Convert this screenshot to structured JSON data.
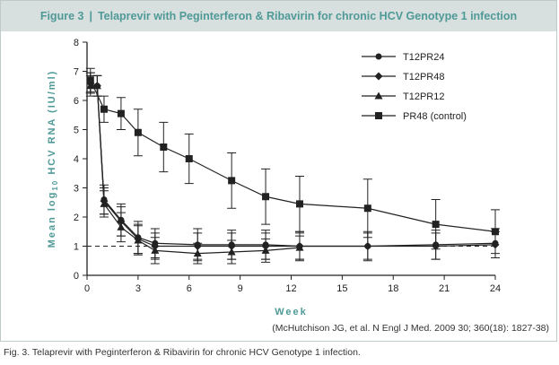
{
  "figure": {
    "label": "Figure 3",
    "separator": "|",
    "title": "Telaprevir with Peginterferon & Ribavirin for chronic HCV Genotype 1 infection",
    "citation": "(McHutchison JG, et al. N Engl J Med. 2009 30; 360(18): 1827-38)",
    "caption": "Fig. 3.  Telaprevir with Peginterferon & Ribavirin for chronic HCV Genotype 1 infection."
  },
  "chart_data": {
    "type": "line",
    "title": "Telaprevir with Peginterferon & Ribavirin for chronic HCV Genotype 1 infection",
    "xlabel": "Week",
    "ylabel": "Mean log10 HCV RNA (IU/ml)",
    "ylabel_parts": {
      "before": "Mean log",
      "sub": "10",
      "after": " HCV RNA (IU/ml)"
    },
    "xlim": [
      0,
      24
    ],
    "ylim": [
      0,
      8
    ],
    "xticks": [
      0,
      3,
      6,
      9,
      12,
      15,
      18,
      21,
      24
    ],
    "yticks": [
      0,
      1,
      2,
      3,
      4,
      5,
      6,
      7,
      8
    ],
    "reference_line": {
      "y": 1,
      "style": "dashed"
    },
    "legend_position": "top-right",
    "grid": false,
    "series": [
      {
        "name": "T12PR24",
        "marker": "circle",
        "x": [
          0.2,
          0.6,
          1,
          2,
          3,
          4,
          6.5,
          8.5,
          10.5,
          12.5,
          16.5,
          20.5,
          24
        ],
        "y": [
          6.6,
          6.5,
          2.6,
          1.9,
          1.3,
          1.1,
          1.05,
          1.05,
          1.05,
          1.0,
          1.0,
          1.05,
          1.1
        ],
        "err": [
          0.35,
          0.35,
          0.5,
          0.55,
          0.55,
          0.5,
          0.55,
          0.5,
          0.5,
          0.5,
          0.5,
          0.5,
          0.5
        ]
      },
      {
        "name": "T12PR48",
        "marker": "diamond",
        "x": [
          0.2,
          0.6,
          1,
          2,
          3,
          4,
          6.5,
          8.5,
          10.5,
          12.5,
          16.5,
          20.5,
          24
        ],
        "y": [
          6.6,
          6.5,
          2.55,
          1.85,
          1.25,
          1.0,
          1.0,
          1.0,
          1.0,
          1.0,
          1.0,
          1.0,
          1.05
        ],
        "err": [
          0.35,
          0.35,
          0.45,
          0.5,
          0.5,
          0.45,
          0.45,
          0.45,
          0.45,
          0.45,
          0.45,
          0.45,
          0.45
        ]
      },
      {
        "name": "T12PR12",
        "marker": "triangle",
        "x": [
          0.2,
          0.6,
          1,
          2,
          3,
          4,
          6.5,
          8.5,
          10.5,
          12.5
        ],
        "y": [
          6.5,
          6.5,
          2.45,
          1.65,
          1.2,
          0.85,
          0.75,
          0.8,
          0.85,
          0.95
        ],
        "err": [
          0.35,
          0.35,
          0.45,
          0.5,
          0.5,
          0.45,
          0.35,
          0.4,
          0.4,
          0.4
        ]
      },
      {
        "name": "PR48 (control)",
        "marker": "square",
        "x": [
          0.2,
          1,
          2,
          3,
          4.5,
          6,
          8.5,
          10.5,
          12.5,
          16.5,
          20.5,
          24
        ],
        "y": [
          6.7,
          5.7,
          5.55,
          4.9,
          4.4,
          4.0,
          3.25,
          2.7,
          2.45,
          2.3,
          1.75,
          1.5
        ],
        "err": [
          0.4,
          0.45,
          0.55,
          0.8,
          0.85,
          0.85,
          0.95,
          0.95,
          0.95,
          1.0,
          0.85,
          0.75
        ]
      }
    ]
  },
  "colors": {
    "accent": "#4f9a97",
    "title_bg": "#d7dfdf",
    "border": "#bfc9c9",
    "ink": "#222222"
  }
}
